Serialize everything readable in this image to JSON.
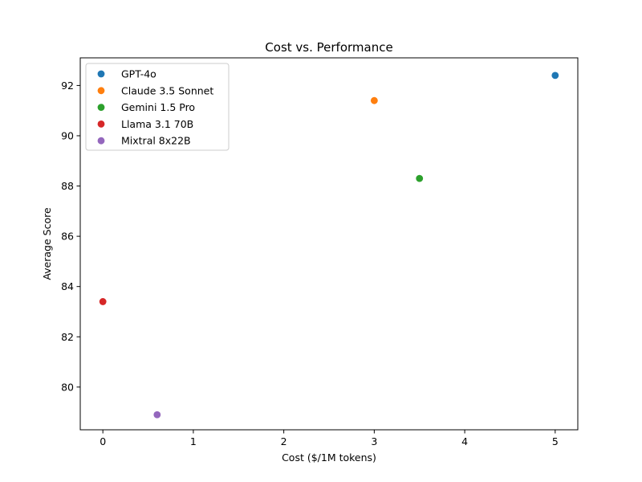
{
  "chart_data": {
    "type": "scatter",
    "title": "Cost vs. Performance",
    "xlabel": "Cost ($/1M tokens)",
    "ylabel": "Average Score",
    "xlim": [
      -0.25,
      5.25
    ],
    "ylim": [
      78.3,
      93.1
    ],
    "xticks": [
      0,
      1,
      2,
      3,
      4,
      5
    ],
    "yticks": [
      80,
      82,
      84,
      86,
      88,
      90,
      92
    ],
    "grid": false,
    "legend_position": "top-left",
    "series": [
      {
        "name": "GPT-4o",
        "color": "#1f77b4",
        "x": [
          5.0
        ],
        "y": [
          92.4
        ]
      },
      {
        "name": "Claude 3.5 Sonnet",
        "color": "#ff7f0e",
        "x": [
          3.0
        ],
        "y": [
          91.4
        ]
      },
      {
        "name": "Gemini 1.5 Pro",
        "color": "#2ca02c",
        "x": [
          3.5
        ],
        "y": [
          88.3
        ]
      },
      {
        "name": "Llama 3.1 70B",
        "color": "#d62728",
        "x": [
          0.0
        ],
        "y": [
          83.4
        ]
      },
      {
        "name": "Mixtral 8x22B",
        "color": "#9467bd",
        "x": [
          0.6
        ],
        "y": [
          78.9
        ]
      }
    ]
  }
}
